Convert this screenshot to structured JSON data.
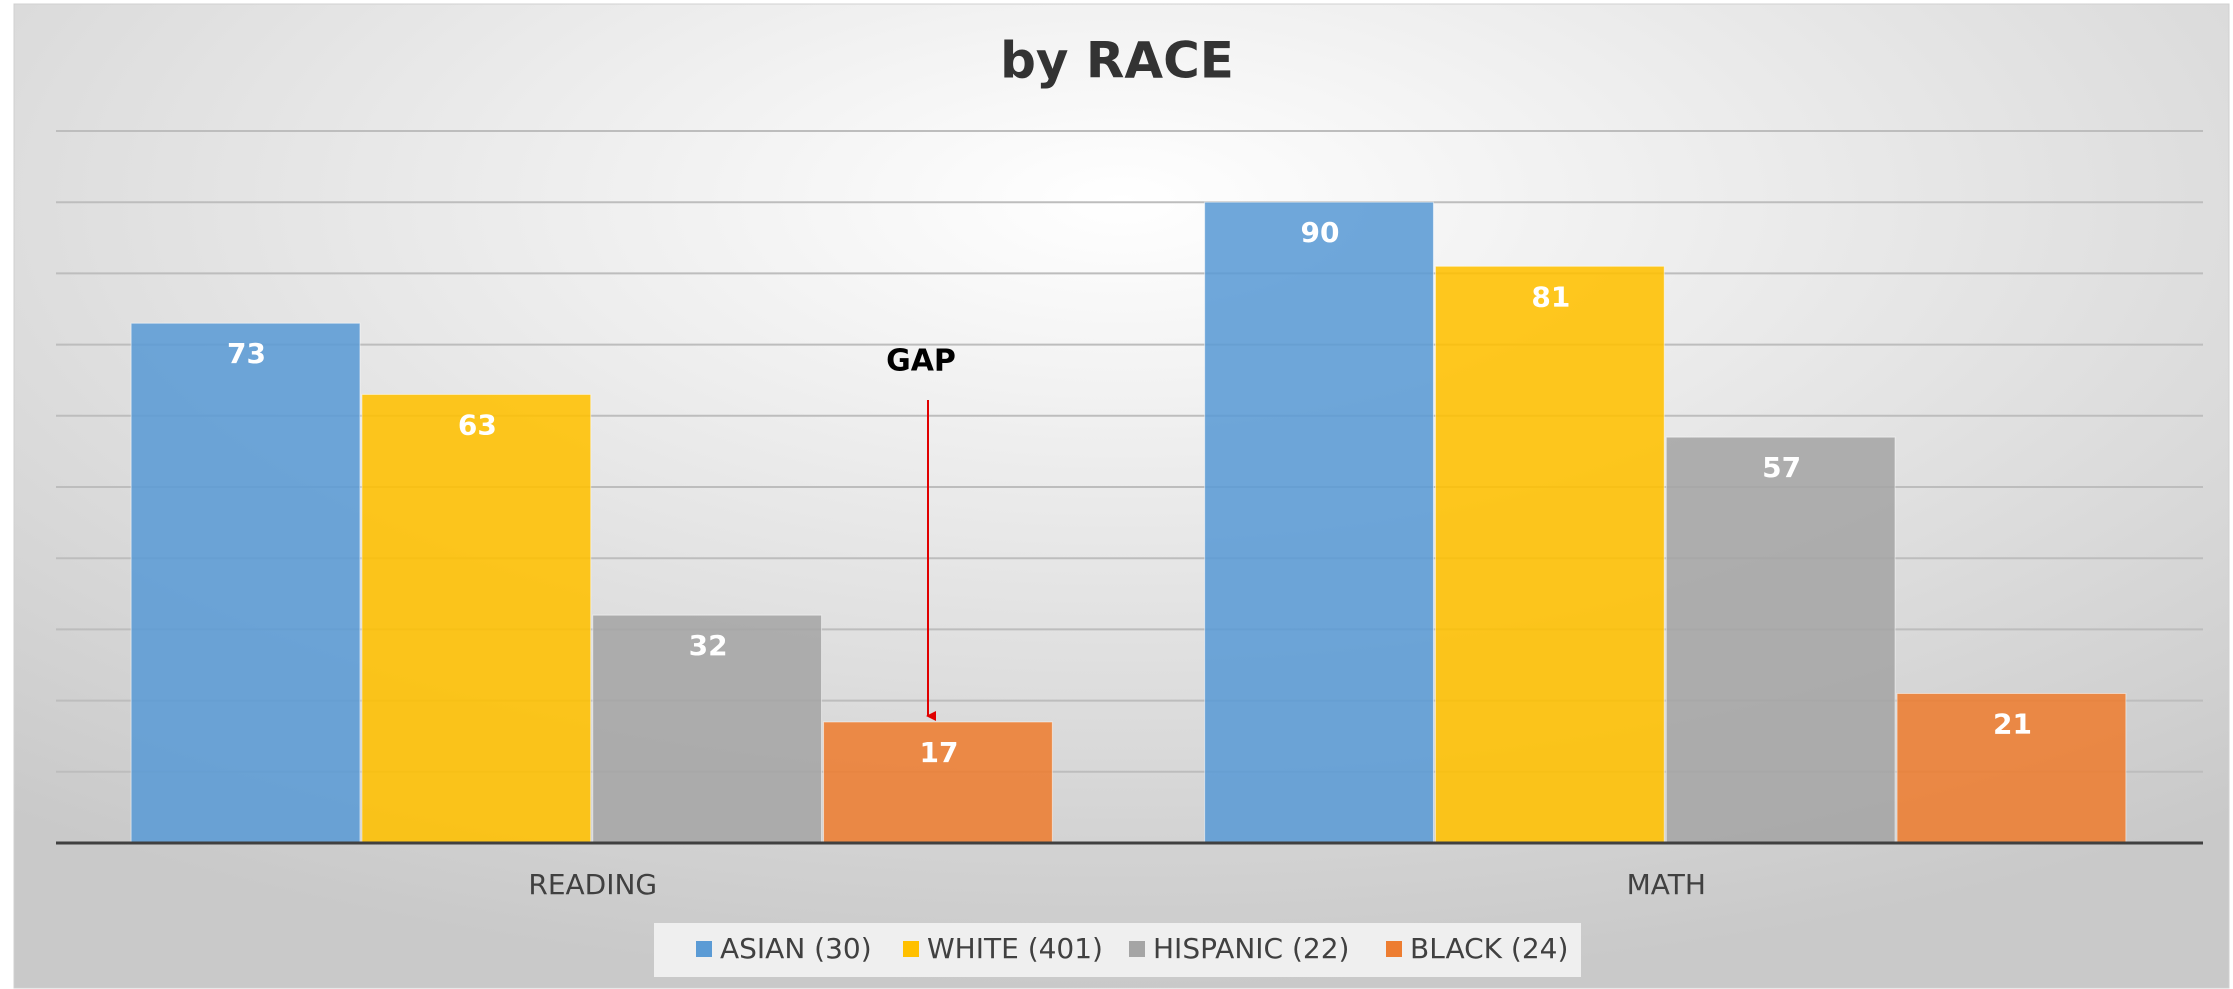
{
  "chart_data": {
    "type": "bar",
    "title": "by RACE",
    "categories": [
      "READING",
      "MATH"
    ],
    "series": [
      {
        "name": "ASIAN (30)",
        "color": "#5b9bd5",
        "values": [
          73,
          90
        ]
      },
      {
        "name": "WHITE (401)",
        "color": "#ffc000",
        "values": [
          63,
          81
        ]
      },
      {
        "name": "HISPANIC (22)",
        "color": "#a5a5a5",
        "values": [
          32,
          57
        ]
      },
      {
        "name": "BLACK (24)",
        "color": "#ed7d31",
        "values": [
          17,
          21
        ]
      }
    ],
    "ylim": [
      0,
      100
    ],
    "yticks": [
      0,
      10,
      20,
      30,
      40,
      50,
      60,
      70,
      80,
      90,
      100
    ],
    "grid": true,
    "legend": "bottom",
    "annotations": [
      {
        "text": "GAP",
        "color": "#e00000"
      }
    ]
  }
}
